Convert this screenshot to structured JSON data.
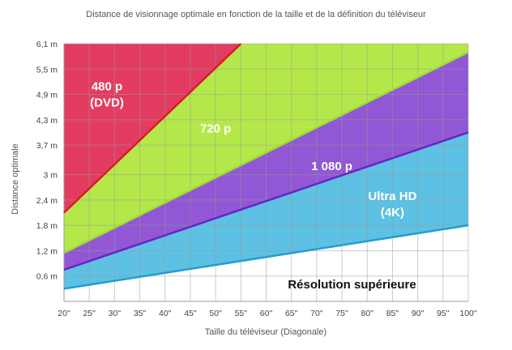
{
  "chart_data": {
    "type": "area",
    "title": "Distance de visionnage optimale en fonction de la taille et de la définition du téléviseur",
    "xlabel": "Taille du téléviseur (Diagonale)",
    "ylabel": "Distance optimale",
    "x_ticks": [
      "20\"",
      "25\"",
      "30\"",
      "35\"",
      "40\"",
      "45\"",
      "50\"",
      "55\"",
      "60\"",
      "65\"",
      "70\"",
      "75\"",
      "80\"",
      "85\"",
      "90\"",
      "95\"",
      "100\""
    ],
    "y_ticks": [
      "0,6 m",
      "1,2 m",
      "1,8 m",
      "2,4 m",
      "3 m",
      "3,7 m",
      "4,3 m",
      "4,9 m",
      "5,5 m",
      "6,1 m"
    ],
    "xlim": [
      20,
      100
    ],
    "ylim": [
      0,
      6.1
    ],
    "grid": true,
    "boundaries": [
      {
        "name": "480 p",
        "x": [
          20,
          55
        ],
        "y": [
          2.1,
          6.1
        ],
        "color": "#e0162b"
      },
      {
        "name": "720 p",
        "x": [
          20,
          100
        ],
        "y": [
          1.15,
          5.9
        ],
        "color": "#9be02a"
      },
      {
        "name": "1 080 p",
        "x": [
          20,
          100
        ],
        "y": [
          0.75,
          4.0
        ],
        "color": "#6a22c8"
      },
      {
        "name": "Ultra HD",
        "x": [
          20,
          100
        ],
        "y": [
          0.3,
          1.8
        ],
        "color": "#1e9fd0"
      }
    ],
    "regions": [
      {
        "label_lines": [
          "480 p",
          "(DVD)"
        ],
        "color": "#e23d61"
      },
      {
        "label_lines": [
          "720 p"
        ],
        "color": "#b4e84a"
      },
      {
        "label_lines": [
          "1 080 p"
        ],
        "color": "#9157d4"
      },
      {
        "label_lines": [
          "Ultra HD",
          "(4K)"
        ],
        "color": "#5ec0e2"
      },
      {
        "label_lines": [
          "Résolution supérieure"
        ],
        "color": "#ffffff"
      }
    ],
    "region_label_anchor": [
      {
        "x": 28.5,
        "y": 4.9
      },
      {
        "x": 50,
        "y": 4.1
      },
      {
        "x": 73,
        "y": 3.2
      },
      {
        "x": 85,
        "y": 2.3
      },
      {
        "x": 77,
        "y": 0.4
      }
    ]
  }
}
